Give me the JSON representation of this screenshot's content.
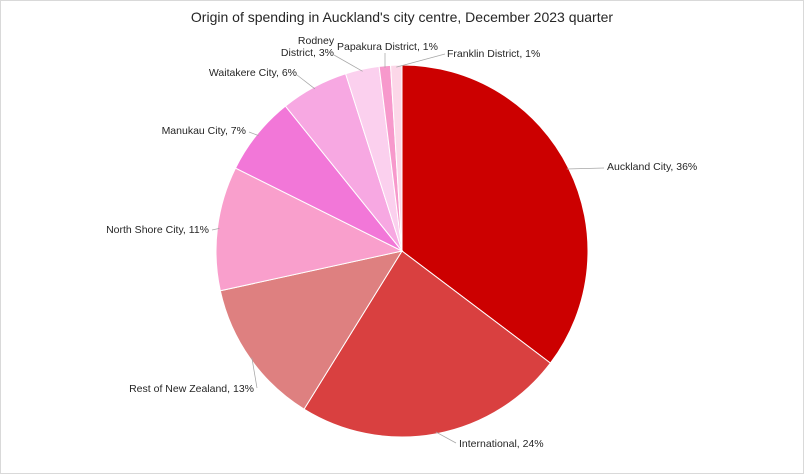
{
  "chart_data": {
    "type": "pie",
    "title": "Origin of spending in Auckland's city centre, December 2023 quarter",
    "slices": [
      {
        "label": "Auckland City, 36%",
        "value": 36,
        "color": "#cc0000"
      },
      {
        "label": "International, 24%",
        "value": 24,
        "color": "#d94040"
      },
      {
        "label": "Rest of New Zealand, 13%",
        "value": 13,
        "color": "#de8080"
      },
      {
        "label": "North Shore City, 11%",
        "value": 11,
        "color": "#f99fcc"
      },
      {
        "label": "Manukau City, 7%",
        "value": 7,
        "color": "#f277d8"
      },
      {
        "label": "Waitakere City, 6%",
        "value": 6,
        "color": "#f7a8e2"
      },
      {
        "label": "Rodney District, 3%",
        "value": 3,
        "color": "#fbd0ee"
      },
      {
        "label": "Papakura District, 1%",
        "value": 1,
        "color": "#f799cc"
      },
      {
        "label": "Franklin District, 1%",
        "value": 1,
        "color": "#fcd7e8"
      }
    ],
    "start_angle_deg": 0,
    "direction": "clockwise",
    "legend": "none",
    "data_labels": "outside-with-leader-lines"
  }
}
